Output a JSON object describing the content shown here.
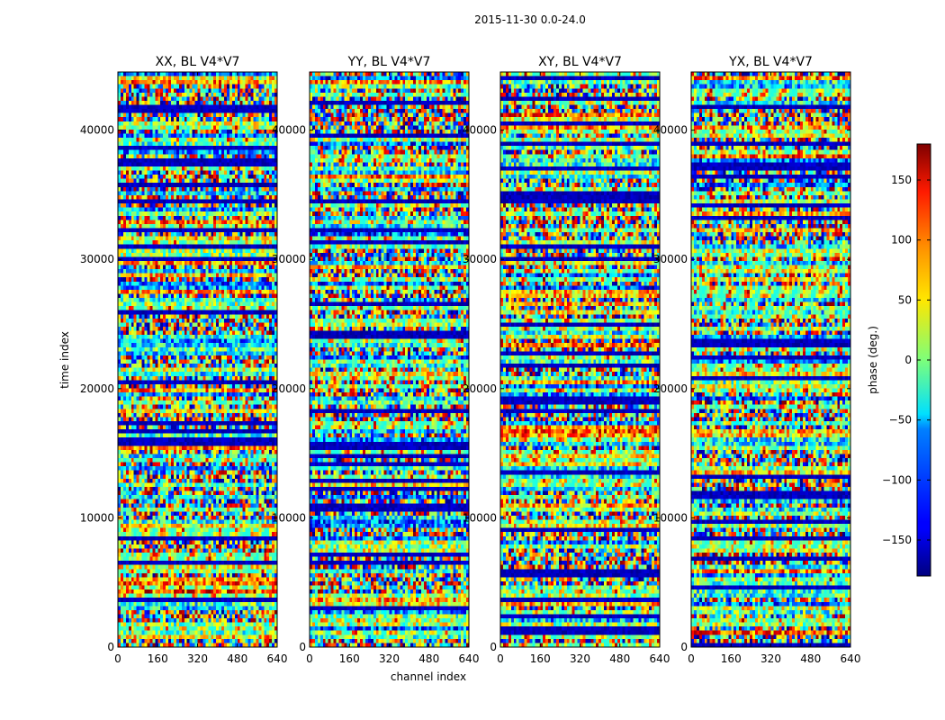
{
  "figure": {
    "suptitle": "2015-11-30 0.0-24.0"
  },
  "chart_data": {
    "type": "heatmap",
    "xlabel": "channel index",
    "ylabel": "time index",
    "xlim": [
      0,
      640
    ],
    "ylim": [
      0,
      44500
    ],
    "xticks": [
      0,
      160,
      320,
      480,
      640
    ],
    "yticks": [
      0,
      10000,
      20000,
      30000,
      40000
    ],
    "colormap": "jet",
    "colorbar": {
      "label": "phase (deg.)",
      "range": [
        -180,
        180
      ],
      "ticks": [
        -150,
        -100,
        -50,
        0,
        50,
        100,
        150
      ],
      "tick_labels": [
        "−150",
        "−100",
        "−50",
        "0",
        "50",
        "100",
        "150"
      ]
    },
    "panels": [
      {
        "title": "XX, BL V4*V7"
      },
      {
        "title": "YY, BL V4*V7"
      },
      {
        "title": "XY, BL V4*V7"
      },
      {
        "title": "YX, BL V4*V7"
      }
    ]
  }
}
